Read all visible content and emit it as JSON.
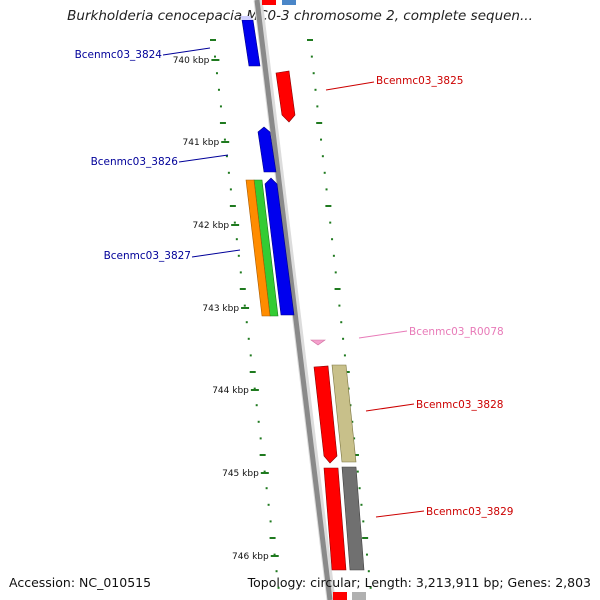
{
  "title": "Burkholderia cenocepacia MC0-3 chromosome 2, complete sequen...",
  "footer": {
    "accession": "Accession: NC_010515",
    "summary": "Topology: circular; Length: 3,213,911 bp; Genes: 2,803"
  },
  "colors": {
    "backbone": "#8a8a8a",
    "tick": "#1f7a1f",
    "forward_label": "#cc0000",
    "reverse_label": "#000099",
    "rna_label": "#e87ab8"
  },
  "scale_labels": [
    "740 kbp",
    "741 kbp",
    "742 kbp",
    "743 kbp",
    "744 kbp",
    "745 kbp",
    "746 kbp"
  ],
  "features": [
    {
      "name": "Bcenmc03_3824",
      "strand": "reverse",
      "color": "#0000ee",
      "label_color": "#000099"
    },
    {
      "name": "Bcenmc03_3825",
      "strand": "forward",
      "color": "#ff0000",
      "label_color": "#cc0000"
    },
    {
      "name": "Bcenmc03_3826",
      "strand": "reverse",
      "color": "#0000ee",
      "label_color": "#000099"
    },
    {
      "name": "Bcenmc03_3827",
      "strand": "reverse",
      "color": "#0000ee",
      "label_color": "#000099"
    },
    {
      "name": "Bcenmc03_R0078",
      "strand": "forward",
      "color": "#f4a0cc",
      "label_color": "#e87ab8"
    },
    {
      "name": "Bcenmc03_3828",
      "strand": "forward",
      "color": "#ff0000",
      "label_color": "#cc0000"
    },
    {
      "name": "Bcenmc03_3829",
      "strand": "forward",
      "color": "#ff0000",
      "label_color": "#cc0000"
    }
  ]
}
